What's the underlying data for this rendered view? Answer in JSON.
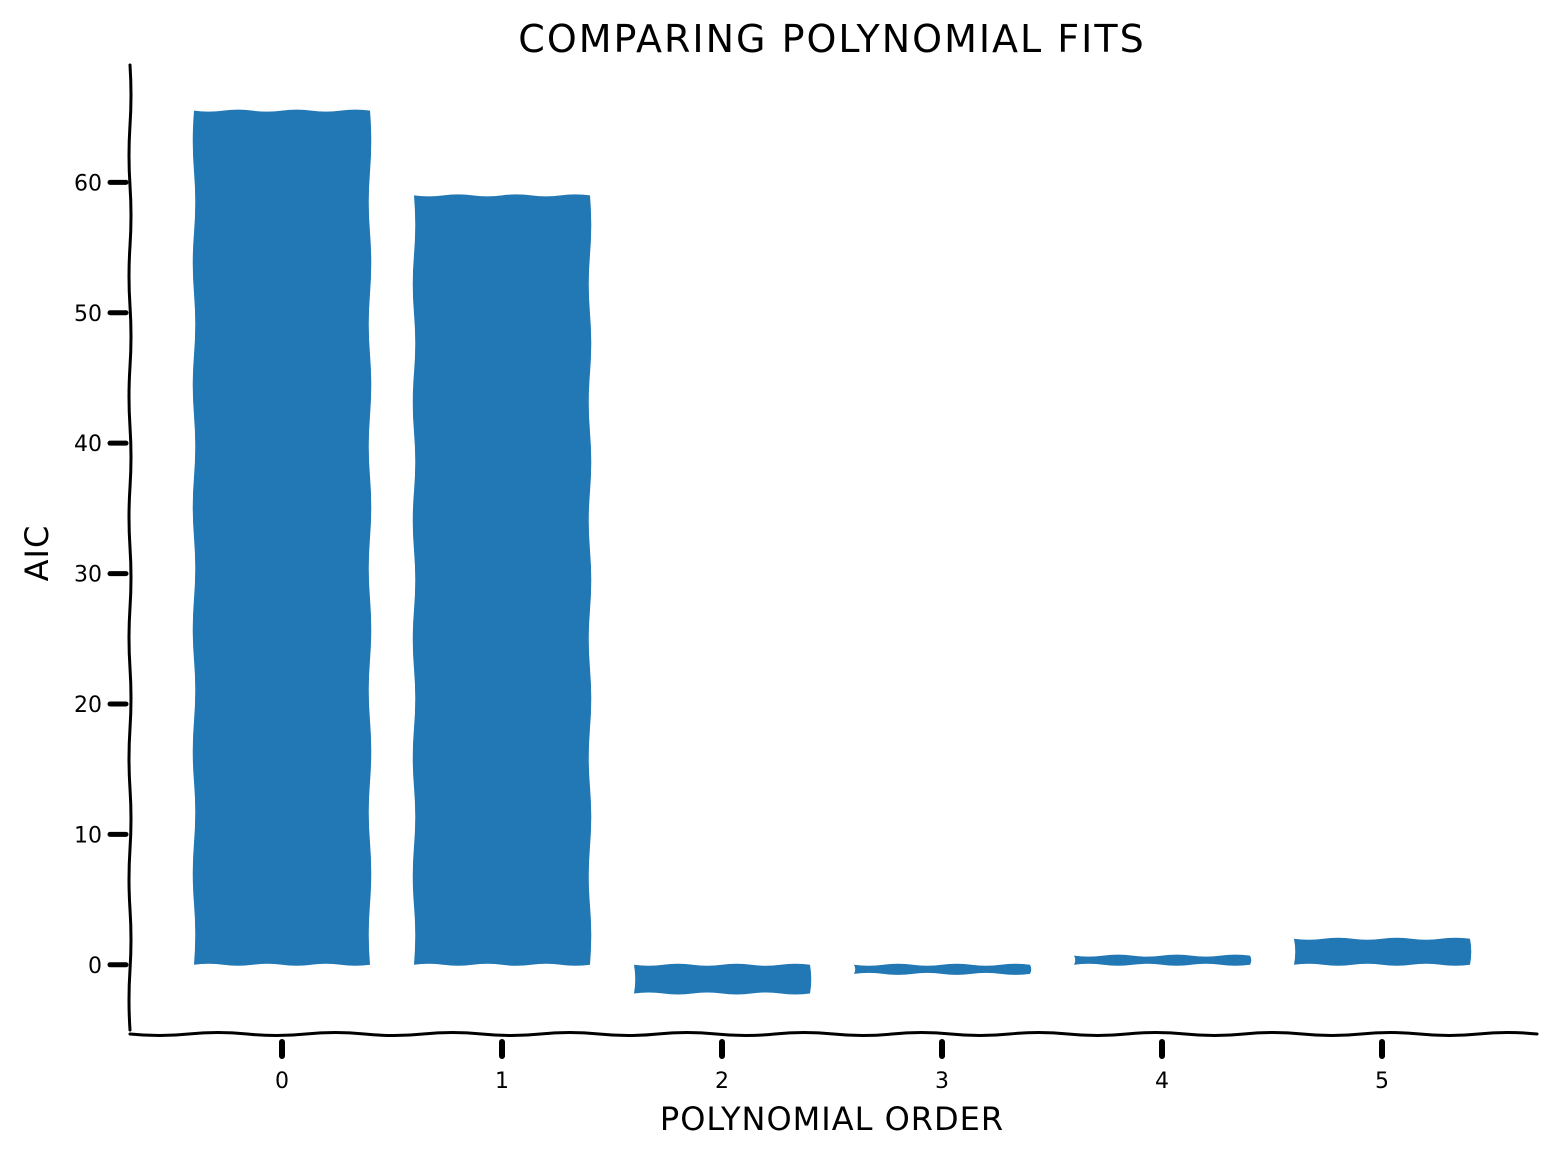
{
  "chart_data": {
    "type": "bar",
    "title": "COMPARING POLYNOMIAL FITS",
    "xlabel": "POLYNOMIAL ORDER",
    "ylabel": "AIC",
    "categories": [
      "0",
      "1",
      "2",
      "3",
      "4",
      "5"
    ],
    "values": [
      65.5,
      59.0,
      -2.2,
      -0.7,
      0.7,
      2.0
    ],
    "yticks": [
      0,
      10,
      20,
      30,
      40,
      50,
      60
    ],
    "ylim": [
      -5,
      69
    ],
    "bar_color": "#2178b4",
    "axis_color": "#000000",
    "grid": false,
    "style": "hand-drawn"
  }
}
